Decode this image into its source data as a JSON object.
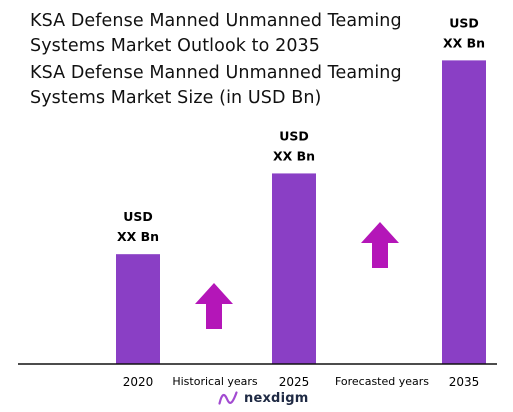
{
  "header": {
    "title_line1": "KSA Defense Manned Unmanned Teaming",
    "title_line2": "Systems Market Outlook to 2035"
  },
  "brand": {
    "name": "nexdigm",
    "icon": "nexdigm-logo-icon",
    "color": "#1f2a44",
    "icon_color": "#a24bd1"
  },
  "colors": {
    "bar": "#8a3fc5",
    "arrow": "#b416b8",
    "axis": "#111111"
  },
  "chart_data": {
    "type": "bar",
    "title": "KSA Defense Manned Unmanned Teaming Systems Market Size (in USD Bn)",
    "title_lines": [
      "KSA Defense Manned Unmanned Teaming",
      "Systems Market Size (in USD Bn)"
    ],
    "categories": [
      "2020",
      "2025",
      "2035"
    ],
    "values": [
      0.34,
      0.59,
      0.94
    ],
    "ylim": [
      0,
      1
    ],
    "xlabel": "",
    "ylabel": "",
    "grid": false,
    "legend": "none",
    "data_labels": [
      [
        "USD",
        "XX Bn"
      ],
      [
        "USD",
        "XX Bn"
      ],
      [
        "USD",
        "XX Bn"
      ]
    ],
    "period_labels": [
      "Historical years",
      "Forecasted years"
    ],
    "growth_arrows": [
      "up",
      "up"
    ]
  }
}
